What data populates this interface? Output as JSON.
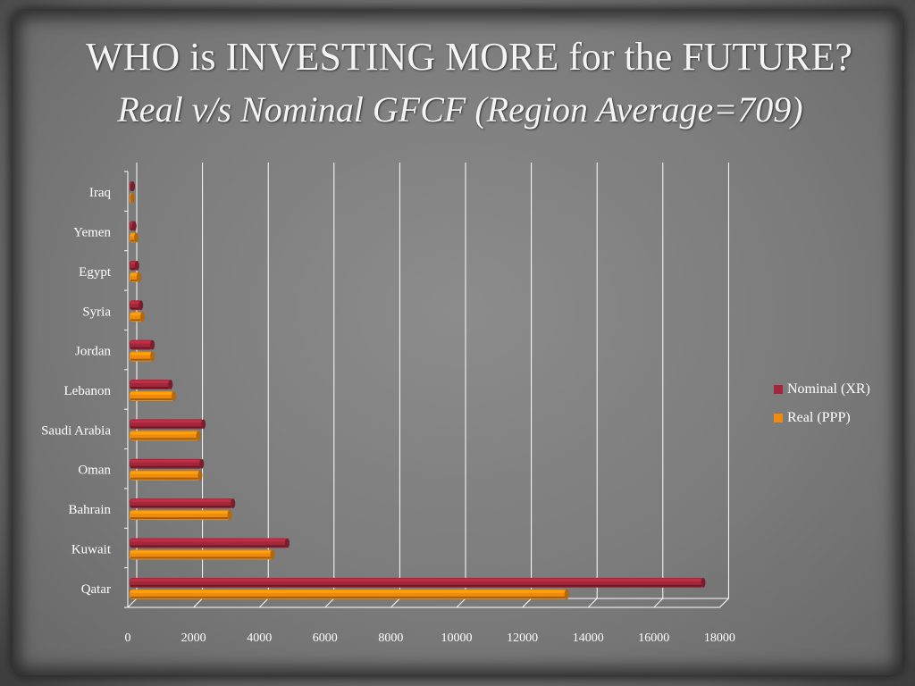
{
  "slide": {
    "title": "WHO is INVESTING MORE for the FUTURE?",
    "subtitle": "Real v/s Nominal GFCF (Region Average=709)"
  },
  "colors": {
    "nominal": "#a3273a",
    "real": "#f08a0c",
    "gridline": "#ffffff",
    "text": "#ffffff"
  },
  "chart_data": {
    "type": "bar",
    "orientation": "horizontal",
    "categories": [
      "Iraq",
      "Yemen",
      "Egypt",
      "Syria",
      "Jordan",
      "Lebanon",
      "Saudi Arabia",
      "Oman",
      "Bahrain",
      "Kuwait",
      "Qatar"
    ],
    "series": [
      {
        "name": "Nominal (XR)",
        "values": [
          150,
          200,
          280,
          400,
          750,
          1300,
          2300,
          2250,
          3200,
          4850,
          17500
        ]
      },
      {
        "name": "Real (PPP)",
        "values": [
          140,
          260,
          340,
          450,
          750,
          1400,
          2150,
          2200,
          3100,
          4400,
          13350
        ]
      }
    ],
    "xticks": [
      "0",
      "2000",
      "4000",
      "6000",
      "8000",
      "10000",
      "12000",
      "14000",
      "16000",
      "18000"
    ],
    "xlim": [
      0,
      18000
    ],
    "grid": true,
    "legend": "right"
  }
}
